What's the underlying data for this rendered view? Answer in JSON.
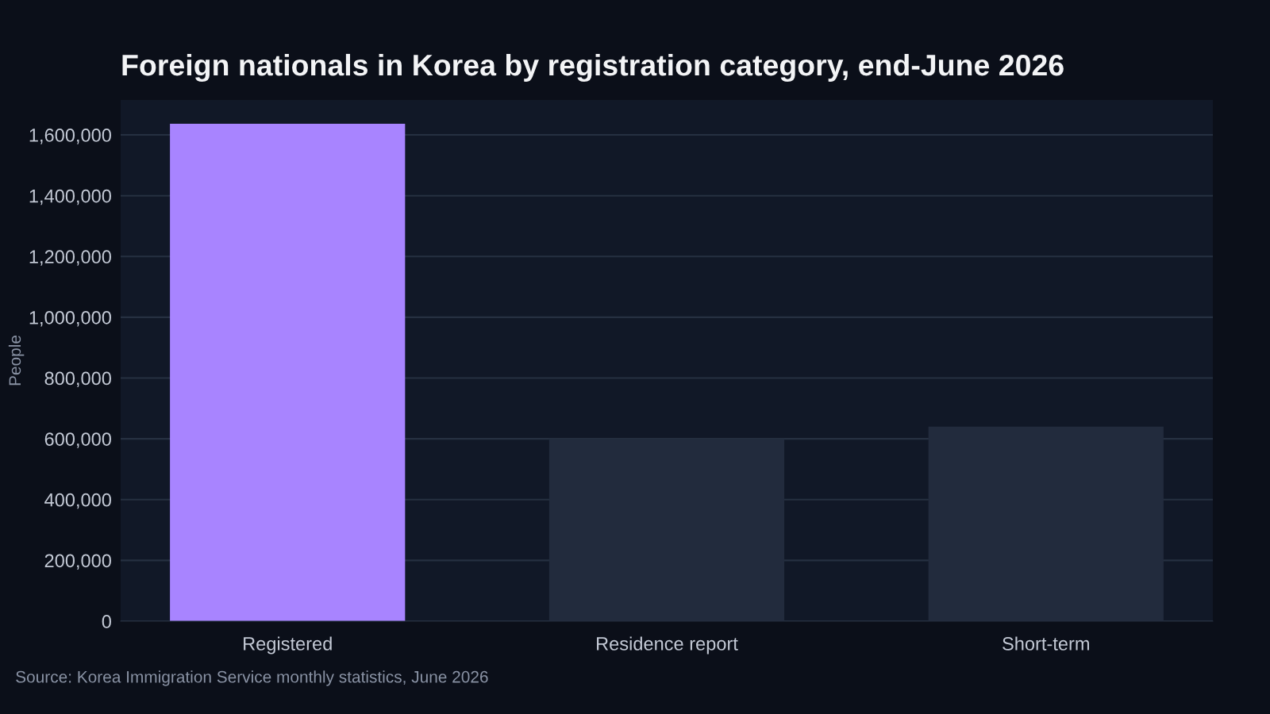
{
  "chart_data": {
    "type": "bar",
    "title": "Foreign nationals in Korea by registration category, end-June 2026",
    "ylabel": "People",
    "categories": [
      "Registered",
      "Residence report",
      "Short-term"
    ],
    "values": [
      1637000,
      600000,
      640000
    ],
    "colors": [
      "#a884ff",
      "#222b3d",
      "#222b3d"
    ],
    "ylim": [
      0,
      1715000
    ],
    "yticks": [
      {
        "value": 0,
        "label": "0"
      },
      {
        "value": 200000,
        "label": "200,000"
      },
      {
        "value": 400000,
        "label": "400,000"
      },
      {
        "value": 600000,
        "label": "600,000"
      },
      {
        "value": 800000,
        "label": "800,000"
      },
      {
        "value": 1000000,
        "label": "1,000,000"
      },
      {
        "value": 1200000,
        "label": "1,200,000"
      },
      {
        "value": 1400000,
        "label": "1,400,000"
      },
      {
        "value": 1600000,
        "label": "1,600,000"
      }
    ],
    "grid": "y",
    "annotations": [
      "Source: Korea Immigration Service monthly statistics, June 2026"
    ]
  }
}
